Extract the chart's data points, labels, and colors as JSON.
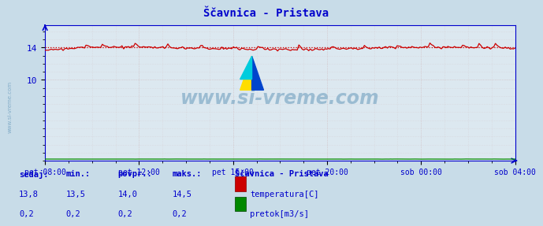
{
  "title": "Ščavnica - Pristava",
  "bg_color": "#c8dce8",
  "plot_bg_color": "#dce8f0",
  "title_color": "#0000cc",
  "axis_color": "#0000cc",
  "tick_color": "#0000cc",
  "temp_line_color": "#cc0000",
  "flow_line_color": "#008800",
  "watermark_color": "#6699bb",
  "watermark_text": "www.si-vreme.com",
  "side_text": "www.si-vreme.com",
  "x_labels": [
    "pet 08:00",
    "pet 12:00",
    "pet 16:00",
    "pet 20:00",
    "sob 00:00",
    "sob 04:00"
  ],
  "ylim": [
    0,
    16.8
  ],
  "y_ticks": [
    10,
    14
  ],
  "temp_avg": 14.0,
  "n_points": 288,
  "stats_labels": [
    "sedaj:",
    "min.:",
    "povpr.:",
    "maks.:"
  ],
  "stats_temp": [
    "13,8",
    "13,5",
    "14,0",
    "14,5"
  ],
  "stats_flow": [
    "0,2",
    "0,2",
    "0,2",
    "0,2"
  ],
  "legend_title": "Ščavnica - Pristava",
  "legend_temp": "temperatura[C]",
  "legend_flow": "pretok[m3/s]"
}
